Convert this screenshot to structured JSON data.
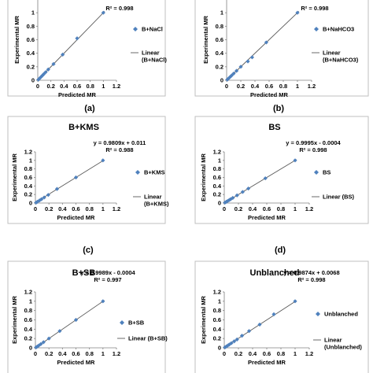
{
  "chart_data": [
    {
      "type": "scatter",
      "title": "",
      "equation": "",
      "r2": "R² = 0.998",
      "caption": "(a)",
      "xlabel": "Predicted MR",
      "ylabel": "Experimental MR",
      "xlim": [
        0,
        1.2
      ],
      "ylim": [
        0,
        1.2
      ],
      "x_ticks": [
        "0",
        "0.2",
        "0.4",
        "0.6",
        "0.8",
        "1",
        "1.2"
      ],
      "y_ticks": [
        "0",
        "0.2",
        "0.4",
        "0.6",
        "0.8",
        "1"
      ],
      "series": [
        {
          "name": "B+NaCl",
          "kind": "points",
          "x": [
            0.01,
            0.03,
            0.05,
            0.07,
            0.09,
            0.12,
            0.16,
            0.24,
            0.38,
            0.6,
            1.0
          ],
          "y": [
            0.01,
            0.03,
            0.05,
            0.07,
            0.09,
            0.12,
            0.16,
            0.24,
            0.38,
            0.62,
            1.0
          ]
        },
        {
          "name": "Linear\n(B+NaCl)",
          "kind": "line",
          "slope": 1.0,
          "intercept": 0.0
        }
      ],
      "color": "#4f81bd"
    },
    {
      "type": "scatter",
      "title": "",
      "equation": "",
      "r2": "R² = 0.998",
      "caption": "(b)",
      "xlabel": "Predicted MR",
      "ylabel": "Experimental MR",
      "xlim": [
        0,
        1.2
      ],
      "ylim": [
        0,
        1.2
      ],
      "x_ticks": [
        "0",
        "0.2",
        "0.4",
        "0.6",
        "0.8",
        "1",
        "1.2"
      ],
      "y_ticks": [
        "0",
        "0.2",
        "0.4",
        "0.6",
        "0.8",
        "1"
      ],
      "series": [
        {
          "name": "B+NaHCO3",
          "kind": "points",
          "x": [
            0.01,
            0.03,
            0.05,
            0.07,
            0.1,
            0.14,
            0.2,
            0.3,
            0.36,
            0.56,
            1.0
          ],
          "y": [
            0.01,
            0.03,
            0.05,
            0.07,
            0.1,
            0.14,
            0.2,
            0.28,
            0.34,
            0.56,
            1.0
          ]
        },
        {
          "name": "Linear\n(B+NaHCO3)",
          "kind": "line",
          "slope": 1.0,
          "intercept": 0.0
        }
      ],
      "color": "#4f81bd"
    },
    {
      "type": "scatter",
      "title": "B+KMS",
      "equation": "y = 0.9809x + 0.011",
      "r2": "R² = 0.988",
      "caption": "(c)",
      "xlabel": "Predicted MR",
      "ylabel": "Experimental MR",
      "xlim": [
        0,
        1.2
      ],
      "ylim": [
        0,
        1.2
      ],
      "x_ticks": [
        "0",
        "0.2",
        "0.4",
        "0.6",
        "0.8",
        "1",
        "1.2"
      ],
      "y_ticks": [
        "0",
        "0.2",
        "0.4",
        "0.6",
        "0.8",
        "1",
        "1.2"
      ],
      "series": [
        {
          "name": "B+KMS",
          "kind": "points",
          "x": [
            0.01,
            0.03,
            0.06,
            0.09,
            0.13,
            0.19,
            0.32,
            0.6,
            1.0
          ],
          "y": [
            0.01,
            0.03,
            0.06,
            0.09,
            0.13,
            0.19,
            0.33,
            0.6,
            1.0
          ]
        },
        {
          "name": "Linear\n(B+KMS)",
          "kind": "line",
          "slope": 0.9809,
          "intercept": 0.011
        }
      ],
      "color": "#4f81bd"
    },
    {
      "type": "scatter",
      "title": "BS",
      "equation": "y = 0.9995x - 0.0004",
      "r2": "R² = 0.998",
      "caption": "(d)",
      "xlabel": "Predicted MR",
      "ylabel": "Experimental MR",
      "xlim": [
        0,
        1.2
      ],
      "ylim": [
        0,
        1.2
      ],
      "x_ticks": [
        "0",
        "0.2",
        "0.4",
        "0.6",
        "0.8",
        "1",
        "1.2"
      ],
      "y_ticks": [
        "0",
        "0.2",
        "0.4",
        "0.6",
        "0.8",
        "1",
        "1.2"
      ],
      "series": [
        {
          "name": "BS",
          "kind": "points",
          "x": [
            0.01,
            0.03,
            0.05,
            0.07,
            0.09,
            0.12,
            0.18,
            0.26,
            0.34,
            0.58,
            1.0
          ],
          "y": [
            0.01,
            0.03,
            0.05,
            0.07,
            0.09,
            0.12,
            0.18,
            0.26,
            0.34,
            0.58,
            1.0
          ]
        },
        {
          "name": "Linear (BS)",
          "kind": "line",
          "slope": 0.9995,
          "intercept": -0.0004
        }
      ],
      "color": "#4f81bd"
    },
    {
      "type": "scatter",
      "title": "B+SB",
      "equation": "y = 0.9989x - 0.0004",
      "r2": "R² = 0.997",
      "caption": "",
      "xlabel": "Predicted MR",
      "ylabel": "Experimental MR",
      "xlim": [
        0,
        1.2
      ],
      "ylim": [
        0,
        1.2
      ],
      "x_ticks": [
        "0",
        "0.2",
        "0.4",
        "0.6",
        "0.8",
        "1",
        "1.2"
      ],
      "y_ticks": [
        "0",
        "0.2",
        "0.4",
        "0.6",
        "0.8",
        "1",
        "1.2"
      ],
      "series": [
        {
          "name": "B+SB",
          "kind": "points",
          "x": [
            0.01,
            0.03,
            0.05,
            0.08,
            0.12,
            0.2,
            0.36,
            0.6,
            1.0
          ],
          "y": [
            0.01,
            0.03,
            0.05,
            0.08,
            0.12,
            0.2,
            0.36,
            0.6,
            1.0
          ]
        },
        {
          "name": "Linear (B+SB)",
          "kind": "line",
          "slope": 0.9989,
          "intercept": -0.0004
        }
      ],
      "color": "#4f81bd"
    },
    {
      "type": "scatter",
      "title": "Unblanched",
      "equation": "y = 0.9874x + 0.0068",
      "r2": "R² = 0.998",
      "caption": "",
      "xlabel": "Predicted MR",
      "ylabel": "Experimental MR",
      "xlim": [
        0,
        1.2
      ],
      "ylim": [
        0,
        1.2
      ],
      "x_ticks": [
        "0",
        "0.2",
        "0.4",
        "0.6",
        "0.8",
        "1",
        "1.2"
      ],
      "y_ticks": [
        "0",
        "0.2",
        "0.4",
        "0.6",
        "0.8",
        "1",
        "1.2"
      ],
      "series": [
        {
          "name": "Unblanched",
          "kind": "points",
          "x": [
            0.01,
            0.03,
            0.05,
            0.07,
            0.1,
            0.14,
            0.18,
            0.25,
            0.35,
            0.5,
            0.7,
            1.0
          ],
          "y": [
            0.01,
            0.03,
            0.05,
            0.07,
            0.1,
            0.14,
            0.18,
            0.26,
            0.36,
            0.5,
            0.72,
            1.0
          ]
        },
        {
          "name": "Linear\n(Unblanched)",
          "kind": "line",
          "slope": 0.9874,
          "intercept": 0.0068
        }
      ],
      "color": "#4f81bd"
    }
  ]
}
